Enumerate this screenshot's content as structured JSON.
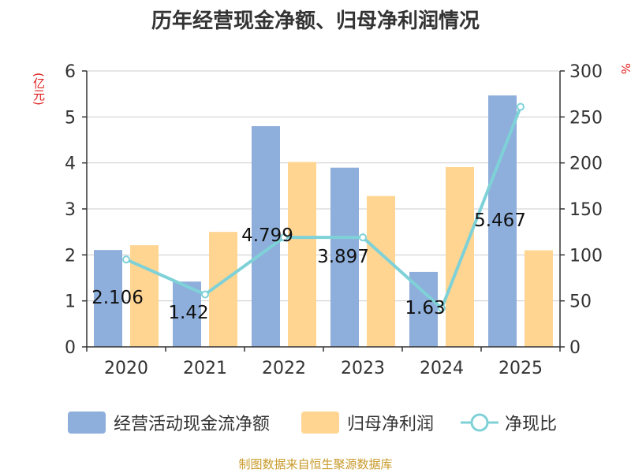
{
  "title": "历年经营现金净额、归母净利润情况",
  "left_unit": "(亿元)",
  "right_unit": "%",
  "source": "制图数据来自恒生聚源数据库",
  "colors": {
    "cash": "#8eaedb",
    "profit": "#ffd591",
    "ratio": "#7fd1d8"
  },
  "legend": [
    {
      "label": "经营活动现金流净额",
      "icon": "bar-swatch"
    },
    {
      "label": "归母净利润",
      "icon": "bar-swatch"
    },
    {
      "label": "净现比",
      "icon": "line-circle-marker"
    }
  ],
  "chart_data": {
    "type": "bar",
    "title": "历年经营现金净额、归母净利润情况",
    "categories": [
      "2020",
      "2021",
      "2022",
      "2023",
      "2024",
      "2025"
    ],
    "series": [
      {
        "name": "经营活动现金流净额",
        "type": "bar",
        "axis": "left",
        "values": [
          2.106,
          1.42,
          4.799,
          3.897,
          1.63,
          5.467
        ],
        "labels": [
          "2.106",
          "1.42",
          "4.799",
          "3.897",
          "1.63",
          "5.467"
        ]
      },
      {
        "name": "归母净利润",
        "type": "bar",
        "axis": "left",
        "values": [
          2.21,
          2.5,
          4.02,
          3.28,
          3.91,
          2.1
        ]
      },
      {
        "name": "净现比",
        "type": "line",
        "axis": "right",
        "values": [
          95,
          57,
          119,
          119,
          42,
          261
        ]
      }
    ],
    "ylim": [
      0,
      6
    ],
    "y_ticks": [
      "0",
      "1",
      "2",
      "3",
      "4",
      "5",
      "6"
    ],
    "y2lim": [
      0,
      300
    ],
    "y2_ticks": [
      "0",
      "50",
      "100",
      "150",
      "200",
      "250",
      "300"
    ],
    "ylabel": "(亿元)",
    "y2label": "%",
    "grid": true,
    "legend_position": "bottom"
  }
}
